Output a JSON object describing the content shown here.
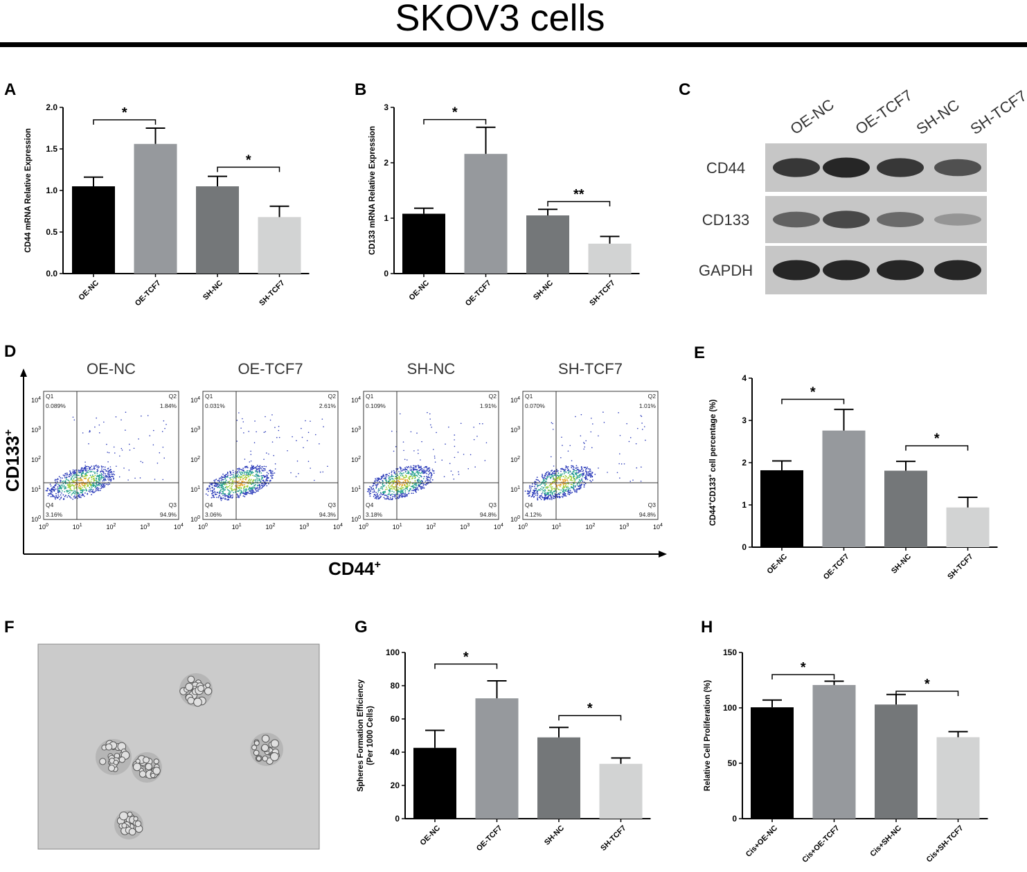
{
  "title": "SKOV3 cells",
  "colors": {
    "bar_black": "#000000",
    "bar_gray1": "#96999d",
    "bar_gray2": "#747779",
    "bar_light": "#d2d3d3",
    "blot_bg": "#c6c6c6",
    "photo_bg": "#cbcbcb"
  },
  "panels": {
    "A": {
      "letter": "A"
    },
    "B": {
      "letter": "B"
    },
    "C": {
      "letter": "C"
    },
    "D": {
      "letter": "D"
    },
    "E": {
      "letter": "E"
    },
    "F": {
      "letter": "F"
    },
    "G": {
      "letter": "G"
    },
    "H": {
      "letter": "H"
    }
  },
  "western_blot": {
    "lanes": [
      "OE-NC",
      "OE-TCF7",
      "SH-NC",
      "SH-TCF7"
    ],
    "rows": [
      {
        "label": "CD44",
        "intensity": [
          0.85,
          0.95,
          0.85,
          0.7
        ]
      },
      {
        "label": "CD133",
        "intensity": [
          0.6,
          0.75,
          0.55,
          0.3
        ]
      },
      {
        "label": "GAPDH",
        "intensity": [
          0.95,
          0.95,
          0.95,
          0.95
        ]
      }
    ]
  },
  "flow": {
    "y_axis_label": "CD133",
    "y_axis_sup": "+",
    "x_axis_label": "CD44",
    "x_axis_sup": "+",
    "tick_base": "10",
    "tick_exps": [
      "0",
      "1",
      "2",
      "3",
      "4"
    ],
    "plots": [
      {
        "title": "OE-NC",
        "q1": "Q1",
        "q1v": "0.089%",
        "q2": "Q2",
        "q2v": "1.84%",
        "q3": "Q3",
        "q3v": "94.9%",
        "q4": "Q4",
        "q4v": "3.16%"
      },
      {
        "title": "OE-TCF7",
        "q1": "Q1",
        "q1v": "0.031%",
        "q2": "Q2",
        "q2v": "2.61%",
        "q3": "Q3",
        "q3v": "94.3%",
        "q4": "Q4",
        "q4v": "3.06%"
      },
      {
        "title": "SH-NC",
        "q1": "Q1",
        "q1v": "0.109%",
        "q2": "Q2",
        "q2v": "1.91%",
        "q3": "Q3",
        "q3v": "94.8%",
        "q4": "Q4",
        "q4v": "3.18%"
      },
      {
        "title": "SH-TCF7",
        "q1": "Q1",
        "q1v": "0.070%",
        "q2": "Q2",
        "q2v": "1.01%",
        "q3": "Q3",
        "q3v": "94.8%",
        "q4": "Q4",
        "q4v": "4.12%"
      }
    ]
  },
  "chart_data": [
    {
      "panel": "A",
      "type": "bar",
      "ylabel": "CD44 mRNA Relative Expression",
      "ylim": [
        0,
        2.0
      ],
      "yticks": [
        "0.0",
        "0.5",
        "1.0",
        "1.5",
        "2.0"
      ],
      "categories": [
        "OE-NC",
        "OE-TCF7",
        "SH-NC",
        "SH-TCF7"
      ],
      "values": [
        1.05,
        1.56,
        1.05,
        0.68
      ],
      "errors": [
        0.11,
        0.19,
        0.12,
        0.13
      ],
      "sig": [
        {
          "from": 0,
          "to": 1,
          "level": 1.85,
          "label": "*"
        },
        {
          "from": 2,
          "to": 3,
          "level": 1.28,
          "label": "*"
        }
      ]
    },
    {
      "panel": "B",
      "type": "bar",
      "ylabel": "CD133 mRNA Relative Expression",
      "ylim": [
        0,
        3
      ],
      "yticks": [
        "0",
        "1",
        "2",
        "3"
      ],
      "categories": [
        "OE-NC",
        "OE-TCF7",
        "SH-NC",
        "SH-TCF7"
      ],
      "values": [
        1.08,
        2.16,
        1.05,
        0.54
      ],
      "errors": [
        0.1,
        0.48,
        0.11,
        0.13
      ],
      "sig": [
        {
          "from": 0,
          "to": 1,
          "level": 2.78,
          "label": "*"
        },
        {
          "from": 2,
          "to": 3,
          "level": 1.3,
          "label": "**"
        }
      ]
    },
    {
      "panel": "E",
      "type": "bar",
      "ylabel": "CD44",
      "ylabel_sup1": "+",
      "ylabel_mid": "CD133",
      "ylabel_sup2": "+",
      "ylabel_tail": " cell percentage  (%)",
      "ylim": [
        0,
        4
      ],
      "yticks": [
        "0",
        "1",
        "2",
        "3",
        "4"
      ],
      "categories": [
        "OE-NC",
        "OE-TCF7",
        "SH-NC",
        "SH-TCF7"
      ],
      "values": [
        1.82,
        2.76,
        1.81,
        0.94
      ],
      "errors": [
        0.22,
        0.5,
        0.22,
        0.24
      ],
      "sig": [
        {
          "from": 0,
          "to": 1,
          "level": 3.5,
          "label": "*"
        },
        {
          "from": 2,
          "to": 3,
          "level": 2.4,
          "label": "*"
        }
      ]
    },
    {
      "panel": "G",
      "type": "bar",
      "ylabel": "Spheres Formation Efficiency",
      "ylabel2": "(Per 1000 Cells)",
      "ylim": [
        0,
        100
      ],
      "yticks": [
        "0",
        "20",
        "40",
        "60",
        "80",
        "100"
      ],
      "categories": [
        "OE-NC",
        "OE-TCF7",
        "SH-NC",
        "SH-TCF7"
      ],
      "values": [
        42.6,
        72.4,
        48.9,
        33.0
      ],
      "errors": [
        10.5,
        10.5,
        6.0,
        3.5
      ],
      "sig": [
        {
          "from": 0,
          "to": 1,
          "level": 93,
          "label": "*"
        },
        {
          "from": 2,
          "to": 3,
          "level": 62,
          "label": "*"
        }
      ]
    },
    {
      "panel": "H",
      "type": "bar",
      "ylabel": "Relative Cell Proliferation  (%)",
      "ylim": [
        0,
        150
      ],
      "yticks": [
        "0",
        "50",
        "100",
        "150"
      ],
      "categories": [
        "Cis+OE-NC",
        "Cis+OE-TCF7",
        "Cis+SH-NC",
        "Cis+SH-TCF7"
      ],
      "values": [
        100.5,
        120.6,
        103.0,
        73.5
      ],
      "errors": [
        6.5,
        3.5,
        9.0,
        5.0
      ],
      "sig": [
        {
          "from": 0,
          "to": 1,
          "level": 130,
          "label": "*"
        },
        {
          "from": 2,
          "to": 3,
          "level": 115,
          "label": "*"
        }
      ]
    }
  ]
}
